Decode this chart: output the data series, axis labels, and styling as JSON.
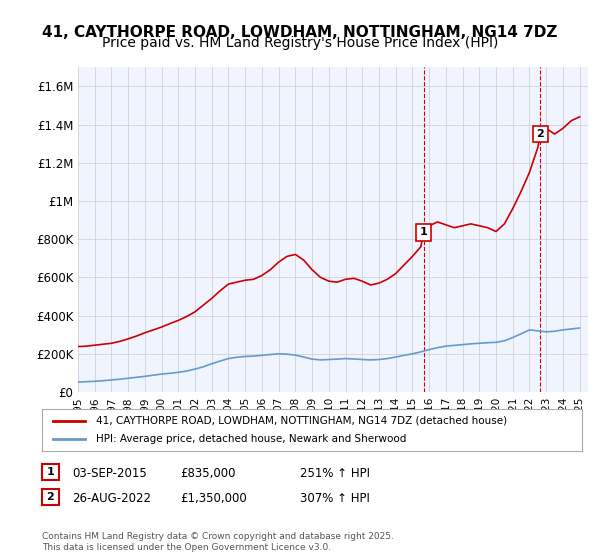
{
  "title_line1": "41, CAYTHORPE ROAD, LOWDHAM, NOTTINGHAM, NG14 7DZ",
  "title_line2": "Price paid vs. HM Land Registry's House Price Index (HPI)",
  "title_fontsize": 11,
  "subtitle_fontsize": 10,
  "ylabel_ticks": [
    "£0",
    "£200K",
    "£400K",
    "£600K",
    "£800K",
    "£1M",
    "£1.2M",
    "£1.4M",
    "£1.6M"
  ],
  "ytick_values": [
    0,
    200000,
    400000,
    600000,
    800000,
    1000000,
    1200000,
    1400000,
    1600000
  ],
  "ylim": [
    0,
    1700000
  ],
  "xlim_start": 1995,
  "xlim_end": 2025.5,
  "xticks": [
    1995,
    1996,
    1997,
    1998,
    1999,
    2000,
    2001,
    2002,
    2003,
    2004,
    2005,
    2006,
    2007,
    2008,
    2009,
    2010,
    2011,
    2012,
    2013,
    2014,
    2015,
    2016,
    2017,
    2018,
    2019,
    2020,
    2021,
    2022,
    2023,
    2024,
    2025
  ],
  "line1_color": "#cc0000",
  "line2_color": "#6699cc",
  "line1_label": "41, CAYTHORPE ROAD, LOWDHAM, NOTTINGHAM, NG14 7DZ (detached house)",
  "line2_label": "HPI: Average price, detached house, Newark and Sherwood",
  "marker1_date": 2015.67,
  "marker1_price": 835000,
  "marker1_label": "1",
  "marker2_date": 2022.65,
  "marker2_price": 1350000,
  "marker2_label": "2",
  "annotation1_date": "03-SEP-2015",
  "annotation1_price": "£835,000",
  "annotation1_hpi": "251% ↑ HPI",
  "annotation2_date": "26-AUG-2022",
  "annotation2_price": "£1,350,000",
  "annotation2_hpi": "307% ↑ HPI",
  "footer": "Contains HM Land Registry data © Crown copyright and database right 2025.\nThis data is licensed under the Open Government Licence v3.0.",
  "grid_color": "#cccccc",
  "bg_color": "#ffffff",
  "plot_bg_color": "#f0f4ff",
  "vline_color": "#cc0000",
  "hpi_line_data": {
    "years": [
      1995,
      1995.5,
      1996,
      1996.5,
      1997,
      1997.5,
      1998,
      1998.5,
      1999,
      1999.5,
      2000,
      2000.5,
      2001,
      2001.5,
      2002,
      2002.5,
      2003,
      2003.5,
      2004,
      2004.5,
      2005,
      2005.5,
      2006,
      2006.5,
      2007,
      2007.5,
      2008,
      2008.5,
      2009,
      2009.5,
      2010,
      2010.5,
      2011,
      2011.5,
      2012,
      2012.5,
      2013,
      2013.5,
      2014,
      2014.5,
      2015,
      2015.5,
      2016,
      2016.5,
      2017,
      2017.5,
      2018,
      2018.5,
      2019,
      2019.5,
      2020,
      2020.5,
      2021,
      2021.5,
      2022,
      2022.5,
      2023,
      2023.5,
      2024,
      2024.5,
      2025
    ],
    "values": [
      52000,
      54000,
      56000,
      59000,
      63000,
      67000,
      72000,
      77000,
      82000,
      88000,
      94000,
      98000,
      103000,
      110000,
      120000,
      132000,
      148000,
      162000,
      175000,
      182000,
      186000,
      188000,
      192000,
      196000,
      200000,
      198000,
      193000,
      183000,
      172000,
      168000,
      170000,
      172000,
      175000,
      173000,
      170000,
      168000,
      170000,
      175000,
      183000,
      192000,
      200000,
      210000,
      222000,
      232000,
      240000,
      244000,
      248000,
      252000,
      255000,
      258000,
      260000,
      268000,
      285000,
      305000,
      325000,
      320000,
      315000,
      318000,
      325000,
      330000,
      335000
    ]
  },
  "price_line_data": {
    "years": [
      1995.0,
      1995.5,
      1996.0,
      1996.5,
      1997.0,
      1997.5,
      1998.0,
      1998.5,
      1999.0,
      1999.5,
      2000.0,
      2000.5,
      2001.0,
      2001.5,
      2002.0,
      2002.5,
      2003.0,
      2003.5,
      2004.0,
      2004.5,
      2005.0,
      2005.5,
      2006.0,
      2006.5,
      2007.0,
      2007.5,
      2008.0,
      2008.5,
      2009.0,
      2009.5,
      2010.0,
      2010.5,
      2011.0,
      2011.5,
      2012.0,
      2012.5,
      2013.0,
      2013.5,
      2014.0,
      2014.5,
      2015.0,
      2015.5,
      2015.67,
      2016.0,
      2016.5,
      2017.0,
      2017.5,
      2018.0,
      2018.5,
      2019.0,
      2019.5,
      2020.0,
      2020.5,
      2021.0,
      2021.5,
      2022.0,
      2022.5,
      2022.65,
      2023.0,
      2023.5,
      2024.0,
      2024.5,
      2025.0
    ],
    "values": [
      238000,
      240000,
      245000,
      250000,
      255000,
      265000,
      278000,
      293000,
      310000,
      325000,
      340000,
      358000,
      375000,
      395000,
      420000,
      455000,
      490000,
      530000,
      565000,
      575000,
      585000,
      590000,
      610000,
      640000,
      680000,
      710000,
      720000,
      690000,
      640000,
      600000,
      580000,
      575000,
      590000,
      595000,
      580000,
      560000,
      570000,
      590000,
      620000,
      665000,
      710000,
      760000,
      835000,
      870000,
      890000,
      875000,
      860000,
      870000,
      880000,
      870000,
      860000,
      840000,
      880000,
      960000,
      1050000,
      1150000,
      1280000,
      1350000,
      1380000,
      1350000,
      1380000,
      1420000,
      1440000
    ]
  }
}
